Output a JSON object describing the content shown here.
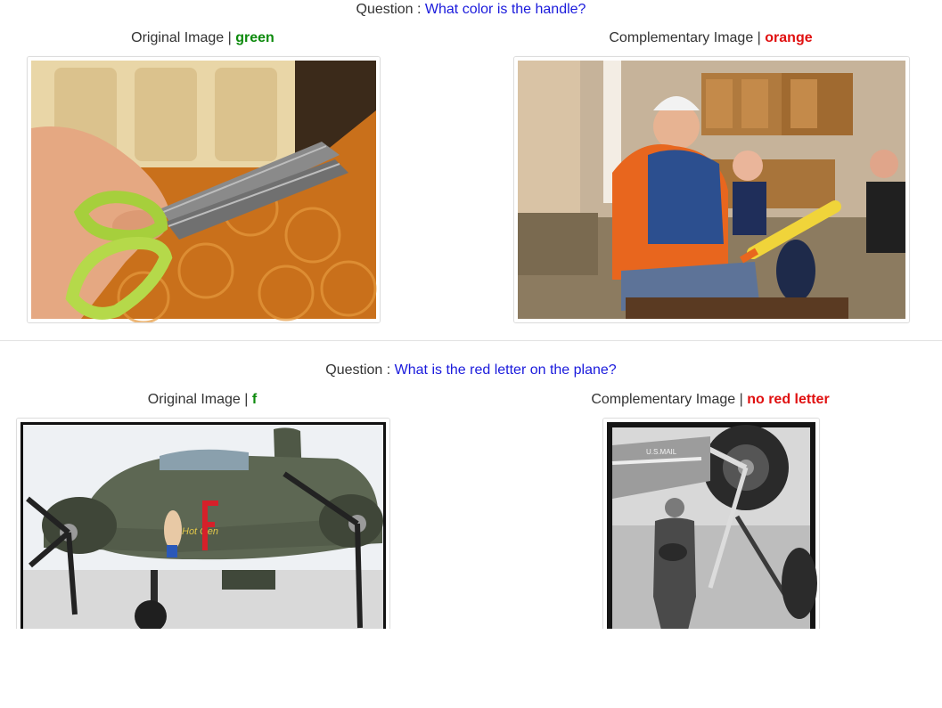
{
  "pairs": [
    {
      "question_label": "Question : ",
      "question_text": "What color is the handle?",
      "original_label": "Original Image | ",
      "original_answer": "green",
      "complementary_label": "Complementary Image | ",
      "complementary_answer": "orange"
    },
    {
      "question_label": "Question : ",
      "question_text": "What is the red letter on the plane?",
      "original_label": "Original Image | ",
      "original_answer": "f",
      "complementary_label": "Complementary Image | ",
      "complementary_answer": "no red letter"
    }
  ],
  "colors": {
    "question_text": "#1a1adc",
    "answer_original": "#0d8a0d",
    "answer_complementary": "#e01010"
  }
}
